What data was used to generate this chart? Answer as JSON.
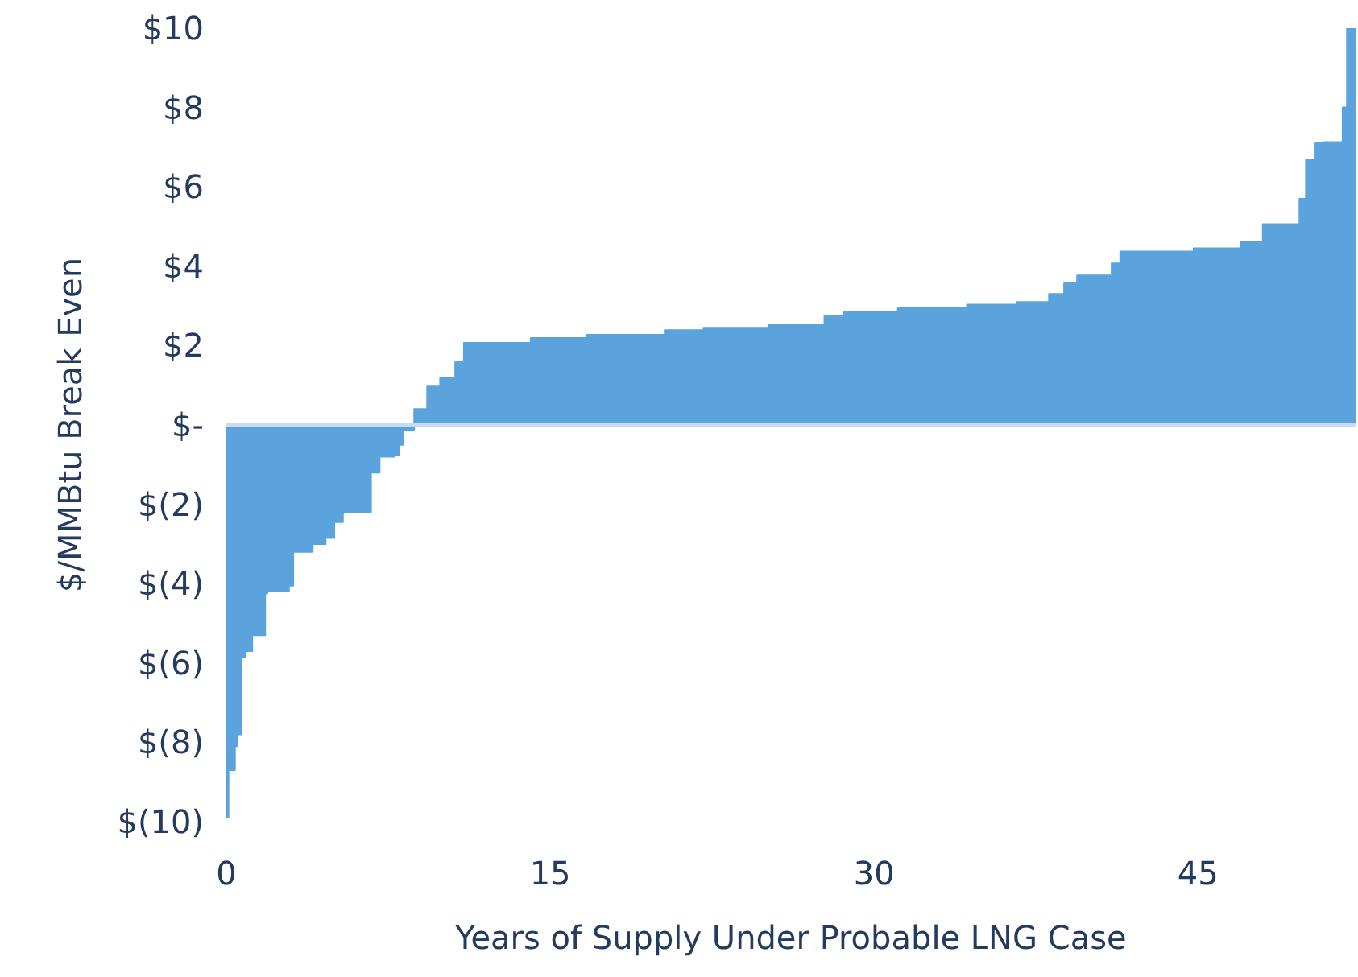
{
  "chart_data": {
    "type": "area",
    "xlabel": "Years of Supply Under Probable LNG Case",
    "ylabel": "$/MMBtu Break Even",
    "x": [
      0,
      0.1,
      0.1,
      0.4,
      0.4,
      0.5,
      0.5,
      0.7,
      0.7,
      0.9,
      0.9,
      1.2,
      1.2,
      1.8,
      1.8,
      1.9,
      1.9,
      2.9,
      2.9,
      3.1,
      3.1,
      4.0,
      4.0,
      4.6,
      4.6,
      5.0,
      5.0,
      5.4,
      5.4,
      6.7,
      6.7,
      7.1,
      7.1,
      7.8,
      7.8,
      8.0,
      8.0,
      8.2,
      8.2,
      8.7,
      8.7,
      9.3,
      9.3,
      9.9,
      9.9,
      10.6,
      10.6,
      11.0,
      11.0,
      14.1,
      14.1,
      16.7,
      16.7,
      20.3,
      20.3,
      22.1,
      22.1,
      25.1,
      25.1,
      27.7,
      27.7,
      28.6,
      28.6,
      31.1,
      31.1,
      34.3,
      34.3,
      36.6,
      36.6,
      38.1,
      38.1,
      38.8,
      38.8,
      39.4,
      39.4,
      41.0,
      41.0,
      41.4,
      41.4,
      44.8,
      44.8,
      47.0,
      47.0,
      48.0,
      48.0,
      49.7,
      49.7,
      50.0,
      50.0,
      50.4,
      50.4,
      50.8,
      50.8,
      51.7,
      51.7,
      51.9,
      51.9,
      52.3
    ],
    "series": [
      {
        "color": "#5ba3dc",
        "values": [
          -9.9,
          -9.9,
          -8.7,
          -8.7,
          -8.1,
          -8.1,
          -7.8,
          -7.8,
          -5.85,
          -5.85,
          -5.7,
          -5.7,
          -5.3,
          -5.3,
          -4.25,
          -4.25,
          -4.2,
          -4.2,
          -4.05,
          -4.05,
          -3.2,
          -3.2,
          -3.0,
          -3.0,
          -2.85,
          -2.85,
          -2.45,
          -2.45,
          -2.2,
          -2.2,
          -1.2,
          -1.2,
          -0.8,
          -0.8,
          -0.75,
          -0.75,
          -0.5,
          -0.5,
          -0.12,
          -0.12,
          0.4,
          0.4,
          0.97,
          0.97,
          1.18,
          1.18,
          1.58,
          1.58,
          2.07,
          2.07,
          2.19,
          2.19,
          2.27,
          2.27,
          2.39,
          2.39,
          2.45,
          2.45,
          2.52,
          2.52,
          2.76,
          2.76,
          2.85,
          2.85,
          2.94,
          2.94,
          3.03,
          3.03,
          3.1,
          3.1,
          3.3,
          3.3,
          3.57,
          3.57,
          3.77,
          3.77,
          4.07,
          4.07,
          4.37,
          4.37,
          4.45,
          4.45,
          4.62,
          4.62,
          5.06,
          5.06,
          5.7,
          5.7,
          6.68,
          6.68,
          7.1,
          7.1,
          7.13,
          7.13,
          8.0,
          8.0,
          10.0,
          10.0
        ]
      }
    ],
    "xlim": [
      0,
      52.3
    ],
    "xticks": [
      0,
      15,
      30,
      45
    ],
    "ylim": [
      -10,
      10
    ],
    "yticks": [
      {
        "value": 10,
        "label": "$10"
      },
      {
        "value": 8,
        "label": "$8"
      },
      {
        "value": 6,
        "label": "$6"
      },
      {
        "value": 4,
        "label": "$4"
      },
      {
        "value": 2,
        "label": "$2"
      },
      {
        "value": 0,
        "label": "$-"
      },
      {
        "value": -2,
        "label": "$(2)"
      },
      {
        "value": -4,
        "label": "$(4)"
      },
      {
        "value": -6,
        "label": "$(6)"
      },
      {
        "value": -8,
        "label": "$(8)"
      },
      {
        "value": -10,
        "label": "$(10)"
      }
    ],
    "ref_lines": [
      {
        "axis": "y",
        "value": 0,
        "color": "#c6dcef"
      }
    ],
    "grid": false
  }
}
